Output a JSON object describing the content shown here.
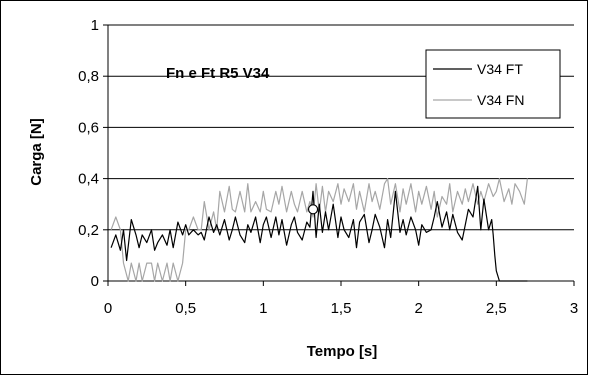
{
  "chart_data": {
    "type": "line",
    "title": "Fn e Ft R5 V34",
    "xlabel": "Tempo [s]",
    "ylabel": "Carga [N]",
    "xlim": [
      0,
      3
    ],
    "ylim": [
      0,
      1
    ],
    "x_ticks": [
      0,
      0.5,
      1,
      1.5,
      2,
      2.5,
      3
    ],
    "x_tick_labels": [
      "0",
      "0,5",
      "1",
      "1,5",
      "2",
      "2,5",
      "3"
    ],
    "y_ticks": [
      0,
      0.2,
      0.4,
      0.6,
      0.8,
      1
    ],
    "y_tick_labels": [
      "0",
      "0,2",
      "0,4",
      "0,6",
      "0,8",
      "1"
    ],
    "grid": "horizontal",
    "legend_position": "top-right",
    "colors": {
      "V34 FT": "#000000",
      "V34 FN": "#a6a6a6"
    },
    "series": [
      {
        "name": "V34 FT",
        "x": [
          0.02,
          0.05,
          0.08,
          0.1,
          0.12,
          0.15,
          0.18,
          0.2,
          0.22,
          0.25,
          0.28,
          0.3,
          0.32,
          0.35,
          0.38,
          0.4,
          0.42,
          0.45,
          0.48,
          0.5,
          0.52,
          0.55,
          0.58,
          0.6,
          0.62,
          0.65,
          0.68,
          0.7,
          0.72,
          0.75,
          0.78,
          0.8,
          0.82,
          0.85,
          0.88,
          0.9,
          0.92,
          0.95,
          0.98,
          1.0,
          1.02,
          1.05,
          1.08,
          1.1,
          1.12,
          1.15,
          1.18,
          1.2,
          1.22,
          1.25,
          1.28,
          1.3,
          1.32,
          1.34,
          1.36,
          1.38,
          1.4,
          1.42,
          1.45,
          1.48,
          1.5,
          1.52,
          1.55,
          1.58,
          1.6,
          1.62,
          1.65,
          1.68,
          1.7,
          1.72,
          1.75,
          1.78,
          1.8,
          1.82,
          1.85,
          1.88,
          1.9,
          1.92,
          1.95,
          1.98,
          2.0,
          2.02,
          2.05,
          2.08,
          2.1,
          2.12,
          2.15,
          2.18,
          2.2,
          2.22,
          2.25,
          2.28,
          2.3,
          2.32,
          2.35,
          2.38,
          2.4,
          2.42,
          2.45,
          2.47,
          2.48,
          2.49,
          2.5,
          2.52,
          2.55,
          2.6,
          2.65,
          2.7
        ],
        "y": [
          0.13,
          0.18,
          0.12,
          0.2,
          0.08,
          0.24,
          0.18,
          0.13,
          0.18,
          0.15,
          0.2,
          0.12,
          0.15,
          0.18,
          0.14,
          0.2,
          0.13,
          0.23,
          0.18,
          0.22,
          0.18,
          0.2,
          0.18,
          0.19,
          0.16,
          0.25,
          0.19,
          0.22,
          0.18,
          0.24,
          0.16,
          0.2,
          0.25,
          0.18,
          0.15,
          0.22,
          0.19,
          0.25,
          0.15,
          0.22,
          0.25,
          0.17,
          0.25,
          0.18,
          0.24,
          0.14,
          0.22,
          0.25,
          0.19,
          0.16,
          0.23,
          0.21,
          0.35,
          0.17,
          0.3,
          0.19,
          0.27,
          0.2,
          0.3,
          0.17,
          0.25,
          0.2,
          0.17,
          0.24,
          0.13,
          0.23,
          0.26,
          0.15,
          0.2,
          0.26,
          0.21,
          0.13,
          0.24,
          0.17,
          0.35,
          0.19,
          0.24,
          0.18,
          0.25,
          0.2,
          0.14,
          0.22,
          0.19,
          0.2,
          0.25,
          0.31,
          0.21,
          0.27,
          0.2,
          0.26,
          0.19,
          0.16,
          0.22,
          0.28,
          0.25,
          0.37,
          0.2,
          0.32,
          0.2,
          0.24,
          0.18,
          0.1,
          0.04,
          0.0,
          0.0,
          0.0,
          0.0,
          0.0
        ]
      },
      {
        "name": "V34 FN",
        "x": [
          0.02,
          0.05,
          0.08,
          0.1,
          0.13,
          0.15,
          0.18,
          0.2,
          0.22,
          0.25,
          0.28,
          0.3,
          0.32,
          0.35,
          0.38,
          0.4,
          0.42,
          0.45,
          0.48,
          0.5,
          0.52,
          0.55,
          0.58,
          0.6,
          0.62,
          0.65,
          0.68,
          0.7,
          0.72,
          0.75,
          0.78,
          0.8,
          0.82,
          0.85,
          0.88,
          0.9,
          0.92,
          0.95,
          0.98,
          1.0,
          1.02,
          1.05,
          1.08,
          1.1,
          1.12,
          1.15,
          1.18,
          1.2,
          1.22,
          1.25,
          1.28,
          1.3,
          1.32,
          1.34,
          1.36,
          1.38,
          1.4,
          1.42,
          1.45,
          1.48,
          1.5,
          1.52,
          1.55,
          1.58,
          1.6,
          1.62,
          1.65,
          1.68,
          1.7,
          1.72,
          1.75,
          1.78,
          1.8,
          1.82,
          1.85,
          1.88,
          1.9,
          1.92,
          1.95,
          1.98,
          2.0,
          2.02,
          2.05,
          2.08,
          2.1,
          2.12,
          2.15,
          2.18,
          2.2,
          2.22,
          2.25,
          2.28,
          2.3,
          2.32,
          2.35,
          2.38,
          2.4,
          2.42,
          2.45,
          2.48,
          2.5,
          2.52,
          2.55,
          2.58,
          2.6,
          2.62,
          2.65,
          2.68,
          2.7
        ],
        "y": [
          0.2,
          0.25,
          0.2,
          0.07,
          0.0,
          0.07,
          0.0,
          0.07,
          0.0,
          0.07,
          0.07,
          0.0,
          0.07,
          0.0,
          0.07,
          0.0,
          0.07,
          0.0,
          0.07,
          0.2,
          0.2,
          0.25,
          0.2,
          0.2,
          0.31,
          0.2,
          0.27,
          0.2,
          0.35,
          0.27,
          0.37,
          0.28,
          0.27,
          0.35,
          0.27,
          0.38,
          0.27,
          0.31,
          0.27,
          0.35,
          0.28,
          0.27,
          0.35,
          0.3,
          0.37,
          0.27,
          0.35,
          0.3,
          0.27,
          0.35,
          0.27,
          0.31,
          0.25,
          0.38,
          0.27,
          0.37,
          0.27,
          0.35,
          0.31,
          0.38,
          0.3,
          0.36,
          0.31,
          0.38,
          0.28,
          0.35,
          0.27,
          0.38,
          0.31,
          0.35,
          0.28,
          0.38,
          0.4,
          0.3,
          0.38,
          0.27,
          0.36,
          0.3,
          0.38,
          0.27,
          0.35,
          0.3,
          0.37,
          0.28,
          0.35,
          0.25,
          0.33,
          0.3,
          0.38,
          0.27,
          0.35,
          0.3,
          0.36,
          0.31,
          0.38,
          0.3,
          0.35,
          0.31,
          0.38,
          0.33,
          0.35,
          0.4,
          0.31,
          0.36,
          0.3,
          0.38,
          0.35,
          0.3,
          0.4
        ]
      }
    ],
    "marker": {
      "x": 1.32,
      "y": 0.28
    }
  }
}
